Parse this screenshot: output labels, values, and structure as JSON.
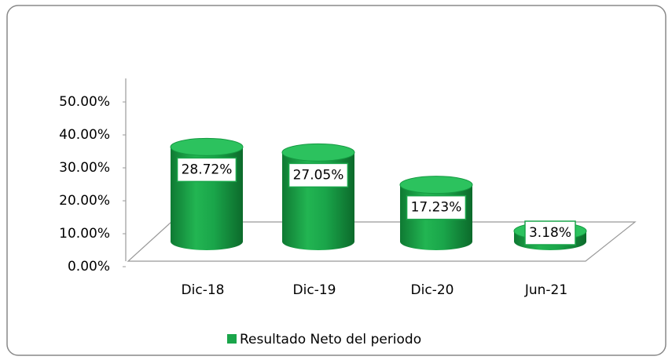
{
  "chart_data": {
    "type": "bar3d",
    "categories": [
      "Dic-18",
      "Dic-19",
      "Dic-20",
      "Jun-21"
    ],
    "series": [
      {
        "name": "Resultado Neto del periodo",
        "color": "#1aa54a",
        "values": [
          28.72,
          27.05,
          17.23,
          3.18
        ],
        "value_labels": [
          "28.72%",
          "27.05%",
          "17.23%",
          "3.18%"
        ]
      }
    ],
    "ylim": [
      0,
      50
    ],
    "yticks": [
      {
        "value": 0,
        "label": "0.00%"
      },
      {
        "value": 10,
        "label": "10.00%"
      },
      {
        "value": 20,
        "label": "20.00%"
      },
      {
        "value": 30,
        "label": "30.00%"
      },
      {
        "value": 40,
        "label": "40.00%"
      },
      {
        "value": 50,
        "label": "50.00%"
      }
    ],
    "grid": false,
    "legend": "bottom"
  }
}
